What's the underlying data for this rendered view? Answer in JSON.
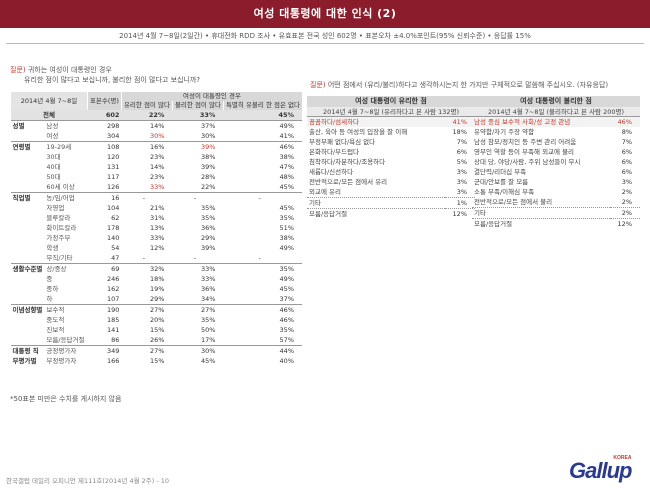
{
  "title": "여성 대통령에 대한 인식 (2)",
  "subtitle": "2014년 4월 7~8일(2일간) • 휴대전화 RDD 조사 • 유효표본 전국 성인 602명 • 표본오차 ±4.0%포인트(95% 신뢰수준) • 응답률 15%",
  "q1": {
    "label": "질문)",
    "line1": "귀하는 여성이 대통령인 경우",
    "line2": "유리한 점이 많다고 보십니까, 불리한 점이 많다고 보십니까?"
  },
  "table1": {
    "date_header": "2014년 4월 7~8일",
    "n_header": "표본수(명)",
    "group_header": "여성이 대통령인 경우",
    "col1": "유리한 점이 많다",
    "col2": "불리한 점이 많다",
    "col3": "특별히 유불리 한 점은 없다",
    "total": {
      "label": "전체",
      "n": "602",
      "a": "22%",
      "b": "33%",
      "c": "45%"
    },
    "groups": {
      "gender": "성별",
      "age": "연령별",
      "job": "직업별",
      "living": "생활수준별",
      "ideology": "이념성향별",
      "presidential_approval": "대통령 직무평가별"
    },
    "rows": [
      {
        "sub": "남성",
        "n": "298",
        "a": "14%",
        "b": "37%",
        "c": "49%"
      },
      {
        "sub": "여성",
        "n": "304",
        "a": "30%",
        "b": "30%",
        "c": "41%"
      },
      {
        "sub": "19-29세",
        "n": "108",
        "a": "16%",
        "b": "39%",
        "c": "46%"
      },
      {
        "sub": "30대",
        "n": "120",
        "a": "23%",
        "b": "38%",
        "c": "38%"
      },
      {
        "sub": "40대",
        "n": "131",
        "a": "14%",
        "b": "39%",
        "c": "47%"
      },
      {
        "sub": "50대",
        "n": "117",
        "a": "23%",
        "b": "28%",
        "c": "48%"
      },
      {
        "sub": "60세 이상",
        "n": "126",
        "a": "33%",
        "b": "22%",
        "c": "45%"
      },
      {
        "sub": "농/임/어업",
        "n": "16",
        "a": "-",
        "b": "-",
        "c": "-"
      },
      {
        "sub": "자영업",
        "n": "104",
        "a": "21%",
        "b": "35%",
        "c": "45%"
      },
      {
        "sub": "블루칼라",
        "n": "62",
        "a": "31%",
        "b": "35%",
        "c": "35%"
      },
      {
        "sub": "화이트칼라",
        "n": "178",
        "a": "13%",
        "b": "36%",
        "c": "51%"
      },
      {
        "sub": "가정주부",
        "n": "140",
        "a": "33%",
        "b": "29%",
        "c": "38%"
      },
      {
        "sub": "학생",
        "n": "54",
        "a": "12%",
        "b": "39%",
        "c": "49%"
      },
      {
        "sub": "무직/기타",
        "n": "47",
        "a": "-",
        "b": "-",
        "c": "-"
      },
      {
        "sub": "상/중상",
        "n": "69",
        "a": "32%",
        "b": "33%",
        "c": "35%"
      },
      {
        "sub": "중",
        "n": "246",
        "a": "18%",
        "b": "33%",
        "c": "49%"
      },
      {
        "sub": "중하",
        "n": "162",
        "a": "19%",
        "b": "36%",
        "c": "45%"
      },
      {
        "sub": "하",
        "n": "107",
        "a": "29%",
        "b": "34%",
        "c": "37%"
      },
      {
        "sub": "보수적",
        "n": "190",
        "a": "27%",
        "b": "27%",
        "c": "46%"
      },
      {
        "sub": "중도적",
        "n": "185",
        "a": "20%",
        "b": "35%",
        "c": "46%"
      },
      {
        "sub": "진보적",
        "n": "141",
        "a": "15%",
        "b": "50%",
        "c": "35%"
      },
      {
        "sub": "모름/응답거절",
        "n": "86",
        "a": "26%",
        "b": "17%",
        "c": "57%"
      },
      {
        "sub": "긍정평가자",
        "n": "349",
        "a": "27%",
        "b": "30%",
        "c": "44%"
      },
      {
        "sub": "부정평가자",
        "n": "166",
        "a": "15%",
        "b": "45%",
        "c": "40%"
      }
    ],
    "note": "*50표본 미만은 수치를 게시하지 않음"
  },
  "q2": {
    "label": "질문)",
    "text": "어떤 점에서 (유리/불리)하다고 생각하시는지 한 가지만 구체적으로 말씀해 주십시오. (자유응답)"
  },
  "advantages": {
    "title": "여성 대통령이 유리한 점",
    "sub": "2014년 4월 7~8일 (유리하다고 본 사람 132명)",
    "items": [
      {
        "label": "꼼꼼하다/섬세하다",
        "pct": "41%"
      },
      {
        "label": "출산, 육아 등 여성의 입장을 잘 이해",
        "pct": "18%"
      },
      {
        "label": "부정부패 없다/욕심 없다",
        "pct": "7%"
      },
      {
        "label": "온화하다/부드럽다",
        "pct": "6%"
      },
      {
        "label": "침착하다/차분하다/조용하다",
        "pct": "5%"
      },
      {
        "label": "새롭다/신선하다",
        "pct": "3%"
      },
      {
        "label": "전반적으로/모든 점에서 유리",
        "pct": "3%"
      },
      {
        "label": "외교에 유리",
        "pct": "3%"
      },
      {
        "label": "기타",
        "pct": "1%"
      },
      {
        "label": "모름/응답거절",
        "pct": "12%"
      }
    ]
  },
  "disadvantages": {
    "title": "여성 대통령이 불리한 점",
    "sub": "2014년 4월 7~8일 (불리하다고 본 사람 200명)",
    "items": [
      {
        "label": "남성 중심 보수적 사회/성 고정 관념",
        "pct": "46%"
      },
      {
        "label": "유약함/자기 주장 약함",
        "pct": "8%"
      },
      {
        "label": "남성 참모/정치인 등 주변 관리 어려움",
        "pct": "7%"
      },
      {
        "label": "영부인 역할 등이 부족해 외교에 불리",
        "pct": "6%"
      },
      {
        "label": "상대 당, 야당/사람, 주위 남성들이 무시",
        "pct": "6%"
      },
      {
        "label": "결단력/리더십 부족",
        "pct": "6%"
      },
      {
        "label": "군대/안보를 잘 모름",
        "pct": "3%"
      },
      {
        "label": "소통 부족/이해심 부족",
        "pct": "2%"
      },
      {
        "label": "전반적으로/모든 점에서 불리",
        "pct": "2%"
      },
      {
        "label": "기타",
        "pct": "2%"
      },
      {
        "label": "모름/응답거절",
        "pct": "12%"
      }
    ]
  },
  "footer": "한국갤럽 데일리 오피니언 제111호(2014년 4월 2주) - 10",
  "logo": {
    "text": "Gallup",
    "sub": "KOREA"
  },
  "colors": {
    "title_bg": "#8b1c2c",
    "highlight": "#c0392b",
    "logo": "#2b3a8c"
  }
}
